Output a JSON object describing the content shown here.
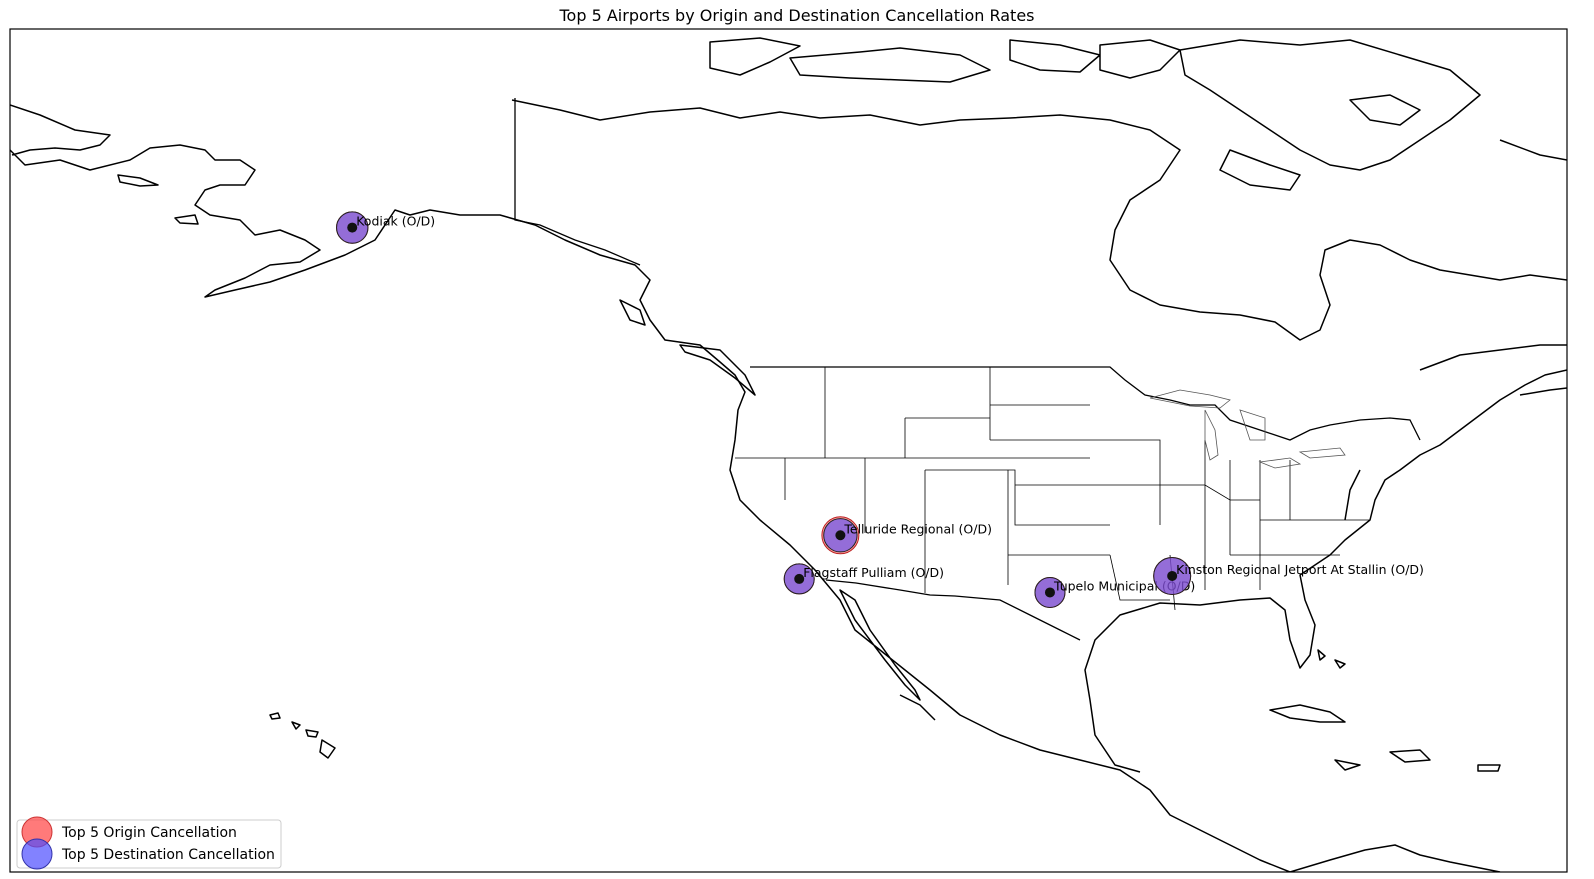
{
  "title": "Top 5 Airports by Origin and Destination Cancellation Rates",
  "colors": {
    "origin": "#ff4d4d",
    "destination": "#4d4dff",
    "point": "#111111",
    "land_edge": "#000000",
    "background": "#ffffff"
  },
  "legend": {
    "placement": "lower-left",
    "items": [
      {
        "label": "Top 5 Origin Cancellation",
        "color": "#ff4d4d"
      },
      {
        "label": "Top 5 Destination Cancellation",
        "color": "#4d4dff"
      }
    ]
  },
  "airports": [
    {
      "name": "Kodiak",
      "label": "Kodiak  (O/D)",
      "lat": 57.75,
      "lon": -152.49,
      "origin_size": 0.55,
      "dest_size": 0.55
    },
    {
      "name": "Telluride Regional",
      "label": "Telluride Regional (O/D)",
      "lat": 37.95,
      "lon": -107.91,
      "origin_size": 0.75,
      "dest_size": 0.62
    },
    {
      "name": "Flagstaff Pulliam",
      "label": "Flagstaff Pulliam (O/D)",
      "lat": 35.14,
      "lon": -111.67,
      "origin_size": 0.5,
      "dest_size": 0.5
    },
    {
      "name": "Tupelo Municipal",
      "label": "Tupelo Municipal  (O/D)",
      "lat": 34.27,
      "lon": -88.77,
      "origin_size": 0.5,
      "dest_size": 0.5
    },
    {
      "name": "Kinston Regional Jetport At Stallin",
      "label": "Kinston Regional Jetport At Stallin (O/D)",
      "lat": 35.33,
      "lon": -77.61,
      "origin_size": 0.75,
      "dest_size": 0.75
    }
  ]
}
